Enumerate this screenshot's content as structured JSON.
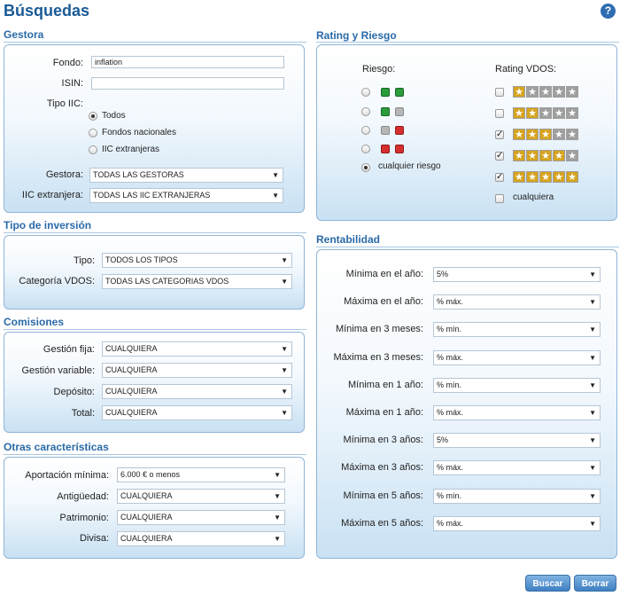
{
  "page_title": "Búsquedas",
  "help_label": "?",
  "gestora": {
    "title": "Gestora",
    "fondo_label": "Fondo:",
    "fondo_value": "inflation",
    "isin_label": "ISIN:",
    "isin_value": "",
    "tipo_label": "Tipo IIC:",
    "tipo_options": [
      "Todos",
      "Fondos nacionales",
      "IIC extranjeras"
    ],
    "gestora_label": "Gestora:",
    "gestora_value": "TODAS LAS GESTORAS",
    "iic_label": "IIC extranjera:",
    "iic_value": "TODAS LAS IIC EXTRANJERAS"
  },
  "tipo_inversion": {
    "title": "Tipo de inversión",
    "tipo_label": "Tipo:",
    "tipo_value": "TODOS LOS TIPOS",
    "categoria_label": "Categoría VDOS:",
    "categoria_value": "TODAS LAS CATEGORIAS VDOS"
  },
  "comisiones": {
    "title": "Comisiones",
    "rows": [
      {
        "label": "Gestión fija:",
        "value": "CUALQUIERA"
      },
      {
        "label": "Gestión variable:",
        "value": "CUALQUIERA"
      },
      {
        "label": "Depósito:",
        "value": "CUALQUIERA"
      },
      {
        "label": "Total:",
        "value": "CUALQUIERA"
      }
    ]
  },
  "otras": {
    "title": "Otras características",
    "rows": [
      {
        "label": "Aportación mínima:",
        "value": "6.000 € o menos"
      },
      {
        "label": "Antigüedad:",
        "value": "CUALQUIERA"
      },
      {
        "label": "Patrimonio:",
        "value": "CUALQUIERA"
      },
      {
        "label": "Divisa:",
        "value": "CUALQUIERA"
      }
    ]
  },
  "rating": {
    "title": "Rating y Riesgo",
    "riesgo_label": "Riesgo:",
    "rating_label": "Rating VDOS:",
    "riesgo_any": "cualquier riesgo",
    "rating_any": "cualquiera",
    "riesgo_selected_index": 4,
    "rating_checked": [
      false,
      false,
      true,
      true,
      true
    ],
    "rating_stars": [
      1,
      2,
      3,
      4,
      5
    ],
    "risk_colors": {
      "green": "#2a9d3a",
      "gray": "#b6b6b6",
      "red": "#d62e2e"
    }
  },
  "rentabilidad": {
    "title": "Rentabilidad",
    "rows": [
      {
        "label": "Mínima en el año:",
        "value": "5%"
      },
      {
        "label": "Máxima en el año:",
        "value": "% máx."
      },
      {
        "label": "Mínima en 3 meses:",
        "value": "% mín."
      },
      {
        "label": "Máxima en 3 meses:",
        "value": "% máx."
      },
      {
        "label": "Mínima en 1 año:",
        "value": "% mín."
      },
      {
        "label": "Máxima en 1 año:",
        "value": "% máx."
      },
      {
        "label": "Mínima en 3 años:",
        "value": "5%"
      },
      {
        "label": "Máxima en 3 años:",
        "value": "% máx."
      },
      {
        "label": "Mínima en 5 años:",
        "value": "% mín."
      },
      {
        "label": "Máxima en 5 años:",
        "value": "% máx."
      }
    ]
  },
  "buttons": {
    "buscar": "Buscar",
    "borrar": "Borrar"
  },
  "colors": {
    "title": "#1a5a96",
    "section_title": "#2a6aa8",
    "button": "#4a88c8",
    "star_gold": "#d6a41e",
    "star_grey": "#9f9f9f"
  }
}
